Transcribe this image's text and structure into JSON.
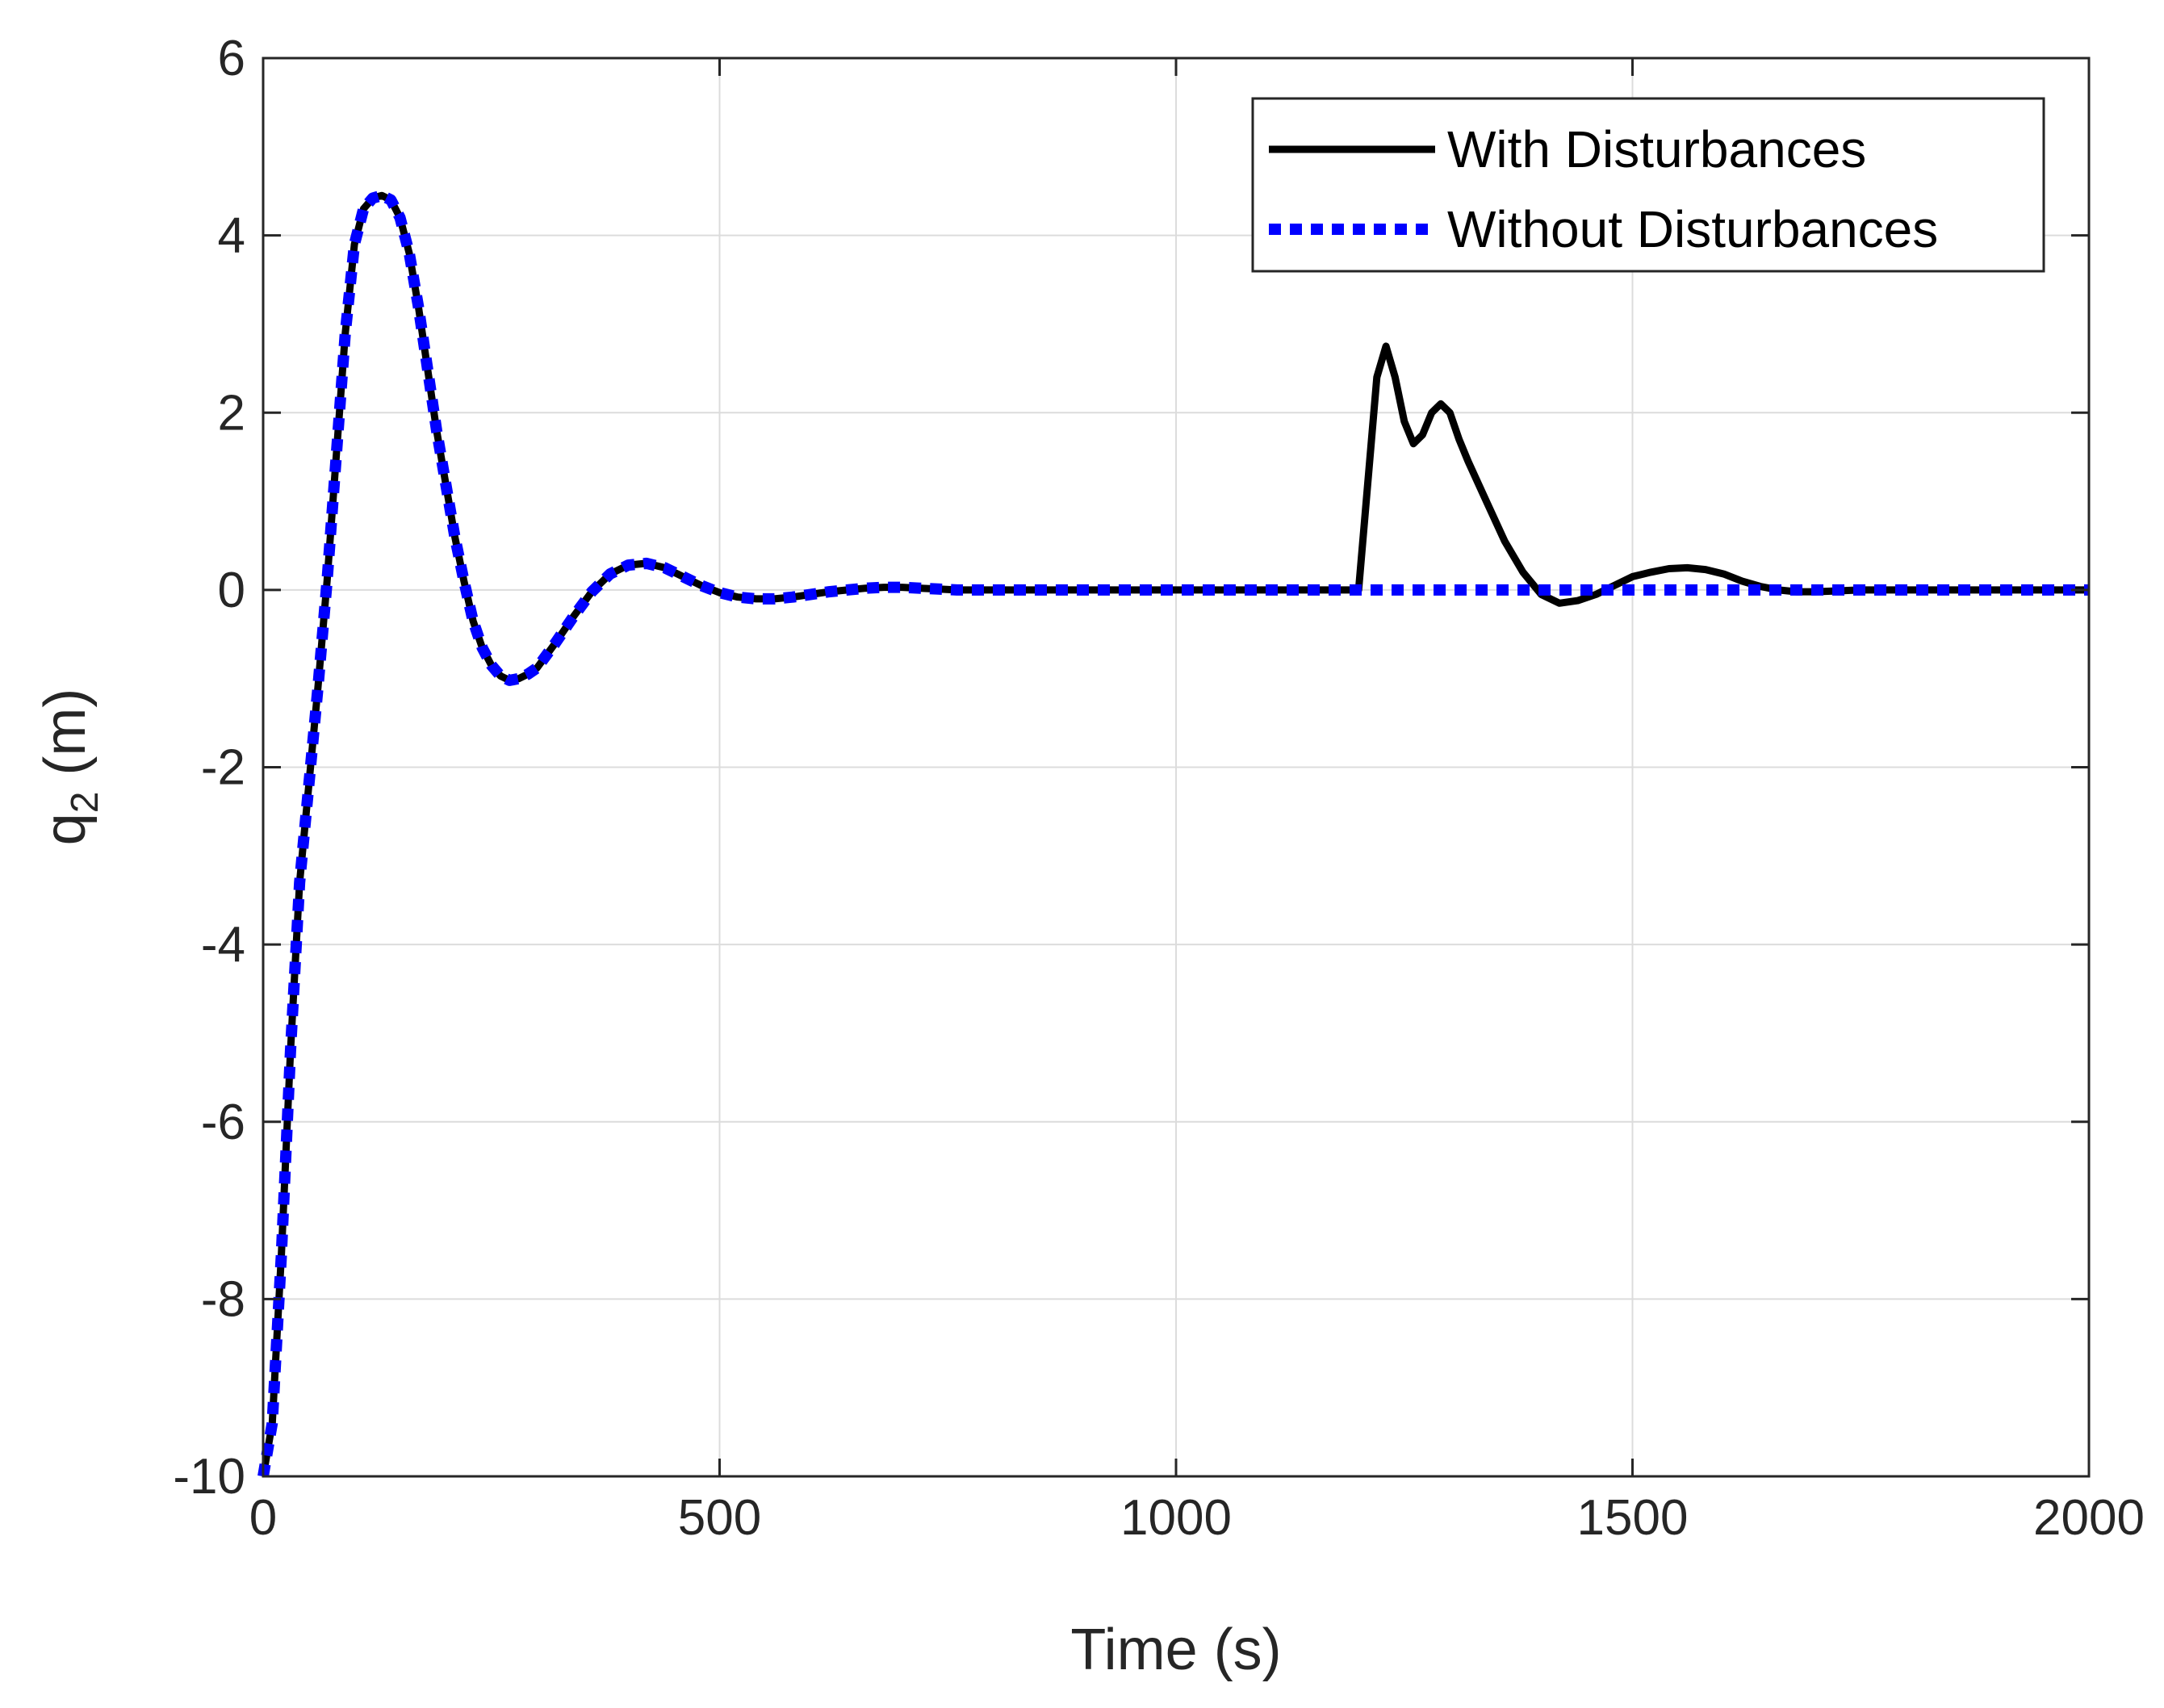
{
  "chart_data": {
    "type": "line",
    "title": "",
    "xlabel": "Time (s)",
    "ylabel_main": "q",
    "ylabel_sub": "2",
    "ylabel_unit": " (m)",
    "xlim": [
      0,
      2000
    ],
    "ylim": [
      -10,
      6
    ],
    "xticks": [
      0,
      500,
      1000,
      1500,
      2000
    ],
    "yticks": [
      -10,
      -8,
      -6,
      -4,
      -2,
      0,
      2,
      4,
      6
    ],
    "grid": true,
    "legend_position": "top-right",
    "series": [
      {
        "name": "With Disturbances",
        "color": "#000000",
        "style": "solid",
        "x": [
          0,
          10,
          20,
          30,
          40,
          50,
          60,
          70,
          80,
          90,
          100,
          110,
          120,
          130,
          140,
          150,
          160,
          170,
          180,
          190,
          200,
          210,
          220,
          230,
          240,
          250,
          260,
          270,
          280,
          290,
          300,
          320,
          340,
          360,
          380,
          400,
          420,
          440,
          460,
          480,
          500,
          520,
          540,
          560,
          580,
          600,
          620,
          640,
          660,
          680,
          700,
          720,
          740,
          760,
          800,
          900,
          1000,
          1100,
          1150,
          1190,
          1200,
          1210,
          1220,
          1230,
          1240,
          1250,
          1260,
          1270,
          1280,
          1290,
          1300,
          1310,
          1320,
          1340,
          1360,
          1380,
          1400,
          1420,
          1440,
          1460,
          1480,
          1500,
          1520,
          1540,
          1560,
          1580,
          1600,
          1620,
          1640,
          1660,
          1680,
          1700,
          1750,
          1800,
          1900,
          2000
        ],
        "y": [
          -10,
          -9.4,
          -7.5,
          -5.2,
          -3.3,
          -2.2,
          -1.1,
          0.1,
          1.5,
          2.9,
          3.9,
          4.3,
          4.42,
          4.45,
          4.4,
          4.2,
          3.8,
          3.2,
          2.5,
          1.8,
          1.2,
          0.6,
          0.1,
          -0.35,
          -0.65,
          -0.85,
          -0.97,
          -1.02,
          -1.0,
          -0.95,
          -0.88,
          -0.6,
          -0.3,
          -0.02,
          0.18,
          0.28,
          0.3,
          0.25,
          0.15,
          0.05,
          -0.03,
          -0.08,
          -0.1,
          -0.1,
          -0.08,
          -0.05,
          -0.02,
          0.0,
          0.02,
          0.03,
          0.03,
          0.02,
          0.01,
          0.0,
          0.0,
          0.0,
          0.0,
          0.0,
          0.0,
          0.0,
          0.0,
          1.2,
          2.4,
          2.75,
          2.4,
          1.9,
          1.65,
          1.75,
          2.0,
          2.1,
          2.0,
          1.7,
          1.45,
          1.0,
          0.55,
          0.2,
          -0.05,
          -0.15,
          -0.12,
          -0.05,
          0.05,
          0.15,
          0.2,
          0.24,
          0.25,
          0.23,
          0.18,
          0.1,
          0.04,
          0.0,
          -0.02,
          -0.02,
          0.0,
          0.0,
          0.0,
          0.0
        ]
      },
      {
        "name": "Without Disturbances",
        "color": "#0000ff",
        "style": "dotted",
        "x": [
          0,
          10,
          20,
          30,
          40,
          50,
          60,
          70,
          80,
          90,
          100,
          110,
          120,
          130,
          140,
          150,
          160,
          170,
          180,
          190,
          200,
          210,
          220,
          230,
          240,
          250,
          260,
          270,
          280,
          290,
          300,
          320,
          340,
          360,
          380,
          400,
          420,
          440,
          460,
          480,
          500,
          520,
          540,
          560,
          580,
          600,
          620,
          640,
          660,
          680,
          700,
          720,
          740,
          760,
          800,
          900,
          1000,
          1200,
          1400,
          1600,
          1800,
          2000
        ],
        "y": [
          -10,
          -9.4,
          -7.5,
          -5.2,
          -3.3,
          -2.2,
          -1.1,
          0.1,
          1.5,
          2.9,
          3.9,
          4.3,
          4.42,
          4.45,
          4.4,
          4.2,
          3.8,
          3.2,
          2.5,
          1.8,
          1.2,
          0.6,
          0.1,
          -0.35,
          -0.65,
          -0.85,
          -0.97,
          -1.02,
          -1.0,
          -0.95,
          -0.88,
          -0.6,
          -0.3,
          -0.02,
          0.18,
          0.28,
          0.3,
          0.25,
          0.15,
          0.05,
          -0.03,
          -0.08,
          -0.1,
          -0.1,
          -0.08,
          -0.05,
          -0.02,
          0.0,
          0.02,
          0.03,
          0.03,
          0.02,
          0.01,
          0.0,
          0.0,
          0.0,
          0.0,
          0.0,
          0.0,
          0.0,
          0.0,
          0.0
        ]
      }
    ]
  }
}
